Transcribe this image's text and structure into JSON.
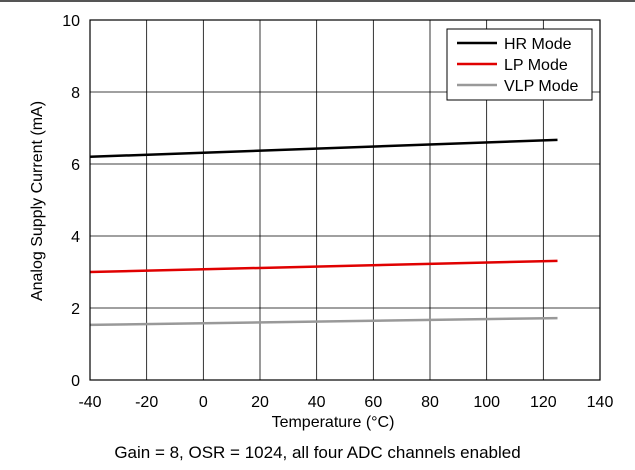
{
  "chart_data": {
    "type": "line",
    "title": "",
    "xlabel": "Temperature (°C)",
    "ylabel": "Analog Supply Current (mA)",
    "xlim": [
      -40,
      140
    ],
    "ylim": [
      0,
      10
    ],
    "xticks": [
      -40,
      -20,
      0,
      20,
      40,
      60,
      80,
      100,
      120,
      140
    ],
    "yticks": [
      0,
      2,
      4,
      6,
      8,
      10
    ],
    "grid": true,
    "legend_position": "top-right",
    "series": [
      {
        "name": "HR Mode",
        "color": "#000000",
        "x": [
          -40,
          125
        ],
        "y": [
          6.2,
          6.67
        ]
      },
      {
        "name": "LP Mode",
        "color": "#e00000",
        "x": [
          -40,
          125
        ],
        "y": [
          3.0,
          3.31
        ]
      },
      {
        "name": "VLP Mode",
        "color": "#999999",
        "x": [
          -40,
          125
        ],
        "y": [
          1.53,
          1.72
        ]
      }
    ]
  },
  "caption": "Gain = 8, OSR = 1024, all four ADC channels enabled"
}
